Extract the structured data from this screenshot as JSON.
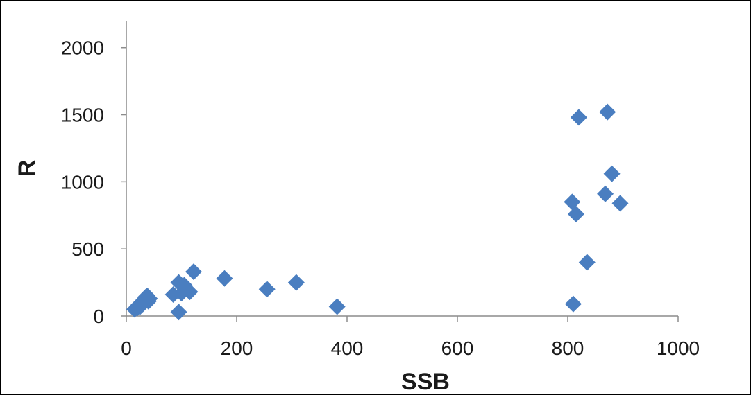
{
  "chart_data": {
    "type": "scatter",
    "title": "",
    "xlabel": "SSB",
    "ylabel": "R",
    "xlim": [
      0,
      1000
    ],
    "ylim": [
      0,
      2200
    ],
    "xticks": [
      "0",
      "200",
      "400",
      "600",
      "800",
      "1000"
    ],
    "yticks": [
      "0",
      "500",
      "1000",
      "1500",
      "2000"
    ],
    "grid": false,
    "legend": "none",
    "marker": "diamond",
    "marker_color": "#4a7ec0",
    "series": [
      {
        "points": [
          [
            15,
            50
          ],
          [
            20,
            60
          ],
          [
            22,
            80
          ],
          [
            25,
            70
          ],
          [
            28,
            100
          ],
          [
            30,
            90
          ],
          [
            32,
            120
          ],
          [
            35,
            140
          ],
          [
            38,
            150
          ],
          [
            40,
            110
          ],
          [
            42,
            130
          ],
          [
            85,
            160
          ],
          [
            95,
            250
          ],
          [
            95,
            30
          ],
          [
            100,
            170
          ],
          [
            105,
            230
          ],
          [
            110,
            200
          ],
          [
            115,
            180
          ],
          [
            122,
            330
          ],
          [
            178,
            280
          ],
          [
            255,
            200
          ],
          [
            308,
            250
          ],
          [
            382,
            70
          ],
          [
            808,
            850
          ],
          [
            810,
            90
          ],
          [
            815,
            760
          ],
          [
            820,
            1480
          ],
          [
            835,
            400
          ],
          [
            868,
            910
          ],
          [
            872,
            1520
          ],
          [
            880,
            1060
          ],
          [
            895,
            840
          ]
        ]
      }
    ]
  }
}
